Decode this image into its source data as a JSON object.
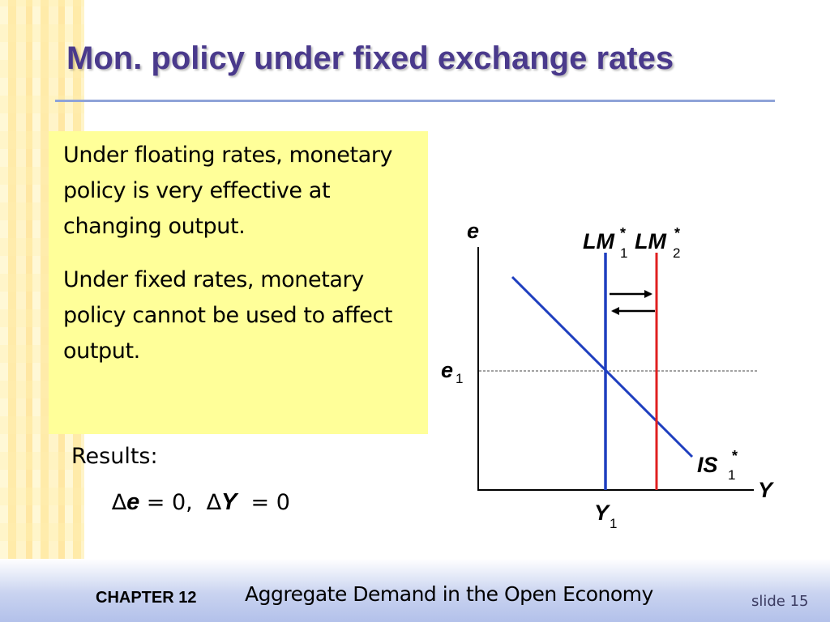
{
  "slide": {
    "title": "Mon. policy under fixed exchange rates"
  },
  "textbox": {
    "para1": "Under floating rates, monetary policy is very effective at changing output.",
    "para2": "Under fixed rates, monetary policy cannot be used to affect output.",
    "fill_color": "#ffff99"
  },
  "results": {
    "label": "Results:",
    "delta_symbol": "∆",
    "var1": "e",
    "eq1": " = 0,  ",
    "var2": "Y",
    "eq2": "  = 0"
  },
  "diagram": {
    "y_axis_label": "e",
    "x_axis_label": "Y",
    "e1_label": "e",
    "e1_sub": "1",
    "y1_label": "Y",
    "y1_sub": "1",
    "lm1_label": "LM",
    "lm1_sup": "*",
    "lm1_sub": "1",
    "lm2_label": "LM",
    "lm2_sup": "*",
    "lm2_sub": "2",
    "is_label": "IS",
    "is_sup": "*",
    "is_sub": "1",
    "colors": {
      "lm1": "#1f3fbf",
      "lm2": "#e02020",
      "is": "#1f3fbf",
      "axes": "#000000"
    }
  },
  "footer": {
    "chapter": "CHAPTER 12",
    "subtitle": "Aggregate Demand in the Open Economy",
    "slide_number": "slide 15"
  }
}
